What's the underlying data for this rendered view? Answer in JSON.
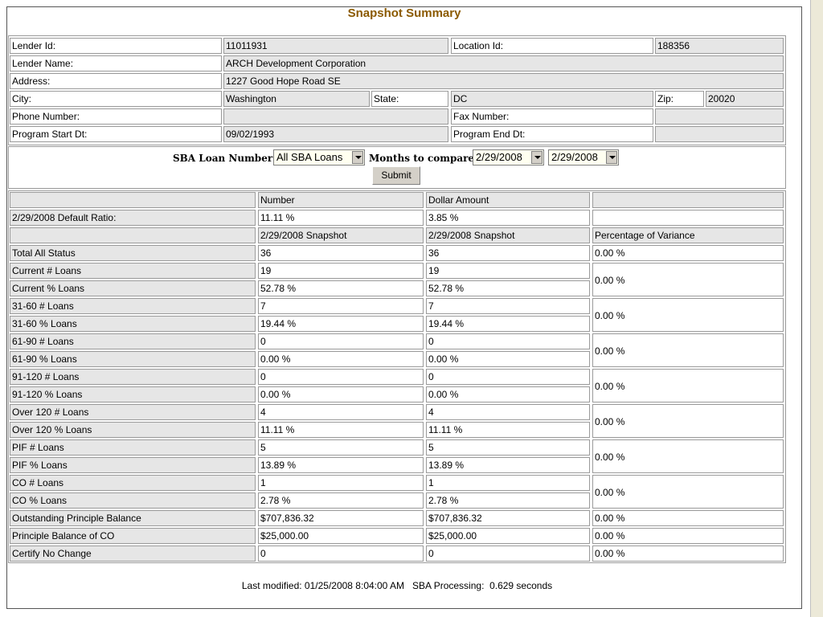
{
  "title": "Snapshot Summary",
  "lender": {
    "rows": [
      [
        "Lender Id:",
        "11011931",
        "Location Id:",
        "188356"
      ],
      [
        "Lender Name:",
        "ARCH Development Corporation"
      ],
      [
        "Address:",
        "1227 Good Hope Road SE"
      ],
      [
        "City:",
        "Washington",
        "State:",
        "DC",
        "Zip:",
        "20020"
      ],
      [
        "Phone Number:",
        "Fax Number:"
      ],
      [
        "Program Start Dt:",
        "09/02/1993",
        "Program End Dt:"
      ]
    ]
  },
  "form": {
    "loan_label": "SBA Loan Number:",
    "loan_value": "All SBA Loans",
    "months_label": "Months to compare:",
    "month_from": "2/29/2008",
    "month_to": "2/29/2008",
    "submit": "Submit"
  },
  "snapshot": {
    "headers": [
      "Number",
      "Dollar Amount"
    ],
    "ratio": [
      "2/29/2008 Default Ratio:",
      "11.11 %",
      "3.85 %"
    ],
    "subheaders": [
      "2/29/2008 Snapshot",
      "2/29/2008 Snapshot",
      "Percentage of Variance"
    ],
    "groups": [
      {
        "rows": [
          [
            "Total All Status",
            "36",
            "36"
          ]
        ],
        "variance": "0.00 %"
      },
      {
        "rows": [
          [
            "Current # Loans",
            "19",
            "19"
          ],
          [
            "Current % Loans",
            "52.78 %",
            "52.78 %"
          ]
        ],
        "variance": "0.00 %"
      },
      {
        "rows": [
          [
            "31-60 # Loans",
            "7",
            "7"
          ],
          [
            "31-60 % Loans",
            "19.44 %",
            "19.44 %"
          ]
        ],
        "variance": "0.00 %"
      },
      {
        "rows": [
          [
            "61-90 # Loans",
            "0",
            "0"
          ],
          [
            "61-90 % Loans",
            "0.00 %",
            "0.00 %"
          ]
        ],
        "variance": "0.00 %"
      },
      {
        "rows": [
          [
            "91-120 # Loans",
            "0",
            "0"
          ],
          [
            "91-120 % Loans",
            "0.00 %",
            "0.00 %"
          ]
        ],
        "variance": "0.00 %"
      },
      {
        "rows": [
          [
            "Over 120 # Loans",
            "4",
            "4"
          ],
          [
            "Over 120 % Loans",
            "11.11 %",
            "11.11 %"
          ]
        ],
        "variance": "0.00 %"
      },
      {
        "rows": [
          [
            "PIF # Loans",
            "5",
            "5"
          ],
          [
            "PIF % Loans",
            "13.89 %",
            "13.89 %"
          ]
        ],
        "variance": "0.00 %"
      },
      {
        "rows": [
          [
            "CO # Loans",
            "1",
            "1"
          ],
          [
            "CO % Loans",
            "2.78 %",
            "2.78 %"
          ]
        ],
        "variance": "0.00 %"
      },
      {
        "rows": [
          [
            "Outstanding Principle Balance",
            "$707,836.32",
            "$707,836.32"
          ]
        ],
        "variance": "0.00 %"
      },
      {
        "rows": [
          [
            "Principle Balance of CO",
            "$25,000.00",
            "$25,000.00"
          ]
        ],
        "variance": "0.00 %"
      },
      {
        "rows": [
          [
            "Certify No Change",
            "0",
            "0"
          ]
        ],
        "variance": "0.00 %"
      }
    ]
  },
  "footer": "Last modified: 01/25/2008 8:04:00 AM   SBA Processing:  0.629 seconds"
}
